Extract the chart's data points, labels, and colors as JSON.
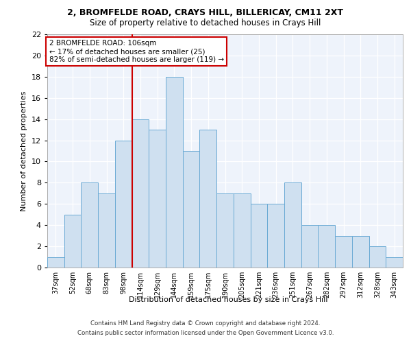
{
  "title1": "2, BROMFELDE ROAD, CRAYS HILL, BILLERICAY, CM11 2XT",
  "title2": "Size of property relative to detached houses in Crays Hill",
  "xlabel": "Distribution of detached houses by size in Crays Hill",
  "ylabel": "Number of detached properties",
  "categories": [
    "37sqm",
    "52sqm",
    "68sqm",
    "83sqm",
    "98sqm",
    "114sqm",
    "129sqm",
    "144sqm",
    "159sqm",
    "175sqm",
    "190sqm",
    "205sqm",
    "221sqm",
    "236sqm",
    "251sqm",
    "267sqm",
    "282sqm",
    "297sqm",
    "312sqm",
    "328sqm",
    "343sqm"
  ],
  "values": [
    1,
    5,
    8,
    7,
    12,
    14,
    13,
    18,
    11,
    13,
    7,
    7,
    6,
    6,
    8,
    4,
    4,
    3,
    3,
    2,
    1
  ],
  "bar_color": "#cfe0f0",
  "bar_edge_color": "#6aaad4",
  "annotation_text": "2 BROMFELDE ROAD: 106sqm\n← 17% of detached houses are smaller (25)\n82% of semi-detached houses are larger (119) →",
  "annotation_box_color": "#ffffff",
  "annotation_box_edge": "#cc0000",
  "footer1": "Contains HM Land Registry data © Crown copyright and database right 2024.",
  "footer2": "Contains public sector information licensed under the Open Government Licence v3.0.",
  "ylim": [
    0,
    22
  ],
  "yticks": [
    0,
    2,
    4,
    6,
    8,
    10,
    12,
    14,
    16,
    18,
    20,
    22
  ],
  "red_line_color": "#cc0000",
  "background_color": "#eef3fb"
}
